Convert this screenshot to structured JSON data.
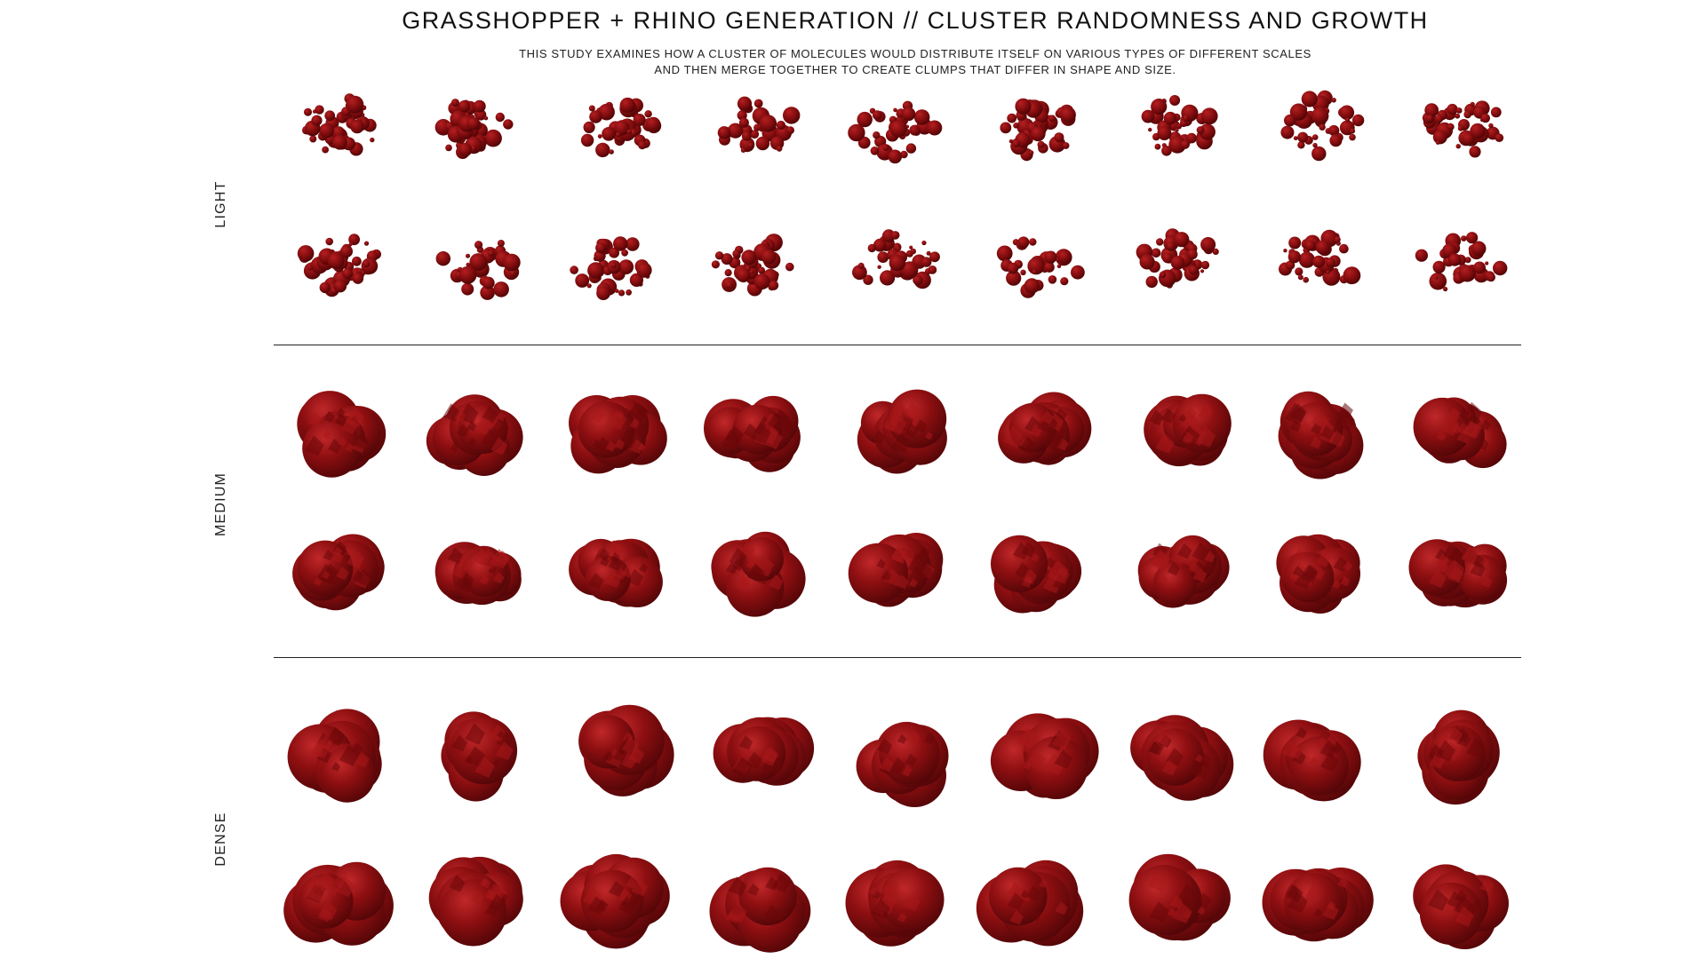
{
  "header": {
    "title": "GRASSHOPPER + RHINO GENERATION  //  CLUSTER RANDOMNESS AND GROWTH",
    "description_line1": "THIS STUDY EXAMINES HOW A CLUSTER OF MOLECULES WOULD DISTRIBUTE ITSELF ON VARIOUS TYPES OF DIFFERENT SCALES",
    "description_line2": "AND THEN MERGE TOGETHER TO CREATE CLUMPS THAT DIFFER IN SHAPE AND SIZE."
  },
  "colors": {
    "cluster_base": "#8b0d0f",
    "cluster_dark": "#5a0608",
    "cluster_highlight": "#b31a1c",
    "divider": "#222222"
  },
  "groups": [
    {
      "label": "LIGHT",
      "density": "light",
      "rows": 2,
      "columns": 9
    },
    {
      "label": "MEDIUM",
      "density": "medium",
      "rows": 2,
      "columns": 9
    },
    {
      "label": "DENSE",
      "density": "dense",
      "rows": 2,
      "columns": 9
    }
  ]
}
